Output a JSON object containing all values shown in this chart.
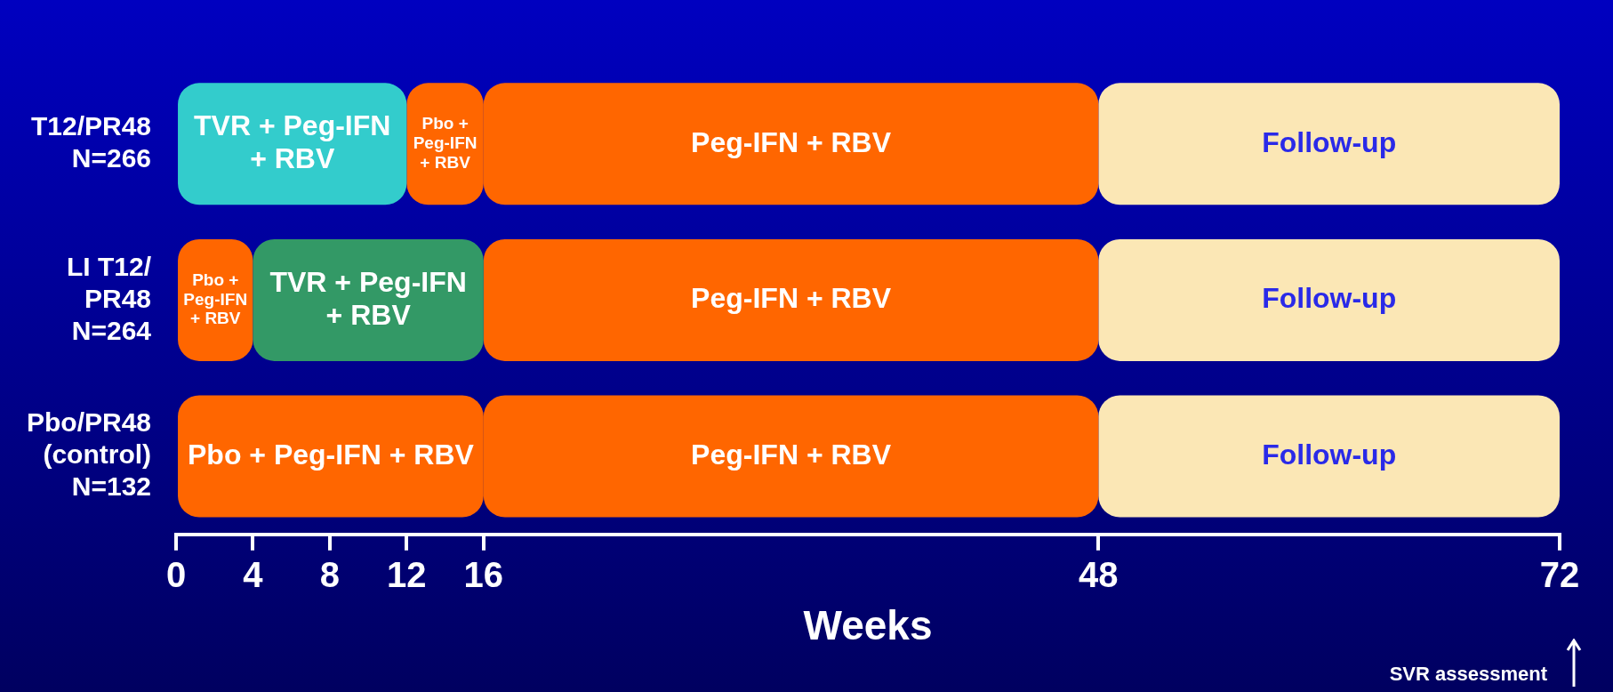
{
  "chart_data": {
    "type": "bar",
    "orientation": "horizontal",
    "categories": [
      "T12/PR48\nN=266",
      "LI T12/\nPR48\nN=264",
      "Pbo/PR48\n(control)\nN=132"
    ],
    "series": [
      {
        "name": "TVR + Peg-IFN + RBV",
        "colors": [
          "#33cccc",
          "#339966",
          null
        ],
        "values": [
          12,
          12,
          null
        ],
        "base": [
          0,
          4,
          null
        ]
      },
      {
        "name": "Pbo + Peg-IFN + RBV",
        "color": "#ff6600",
        "values": [
          4,
          4,
          16
        ],
        "base": [
          12,
          0,
          0
        ]
      },
      {
        "name": "Peg-IFN + RBV",
        "color": "#ff6600",
        "values": [
          32,
          32,
          32
        ],
        "base": [
          16,
          16,
          16
        ]
      },
      {
        "name": "Follow-up",
        "color": "#fbe7b5",
        "values": [
          24,
          24,
          24
        ],
        "base": [
          48,
          48,
          48
        ]
      }
    ],
    "xlim": [
      0,
      72
    ],
    "xticks": [
      0,
      4,
      8,
      12,
      16,
      48,
      72
    ],
    "xlabel": "Weeks",
    "grid": false,
    "legend": false,
    "annotations": [
      "SVR assessment"
    ]
  }
}
